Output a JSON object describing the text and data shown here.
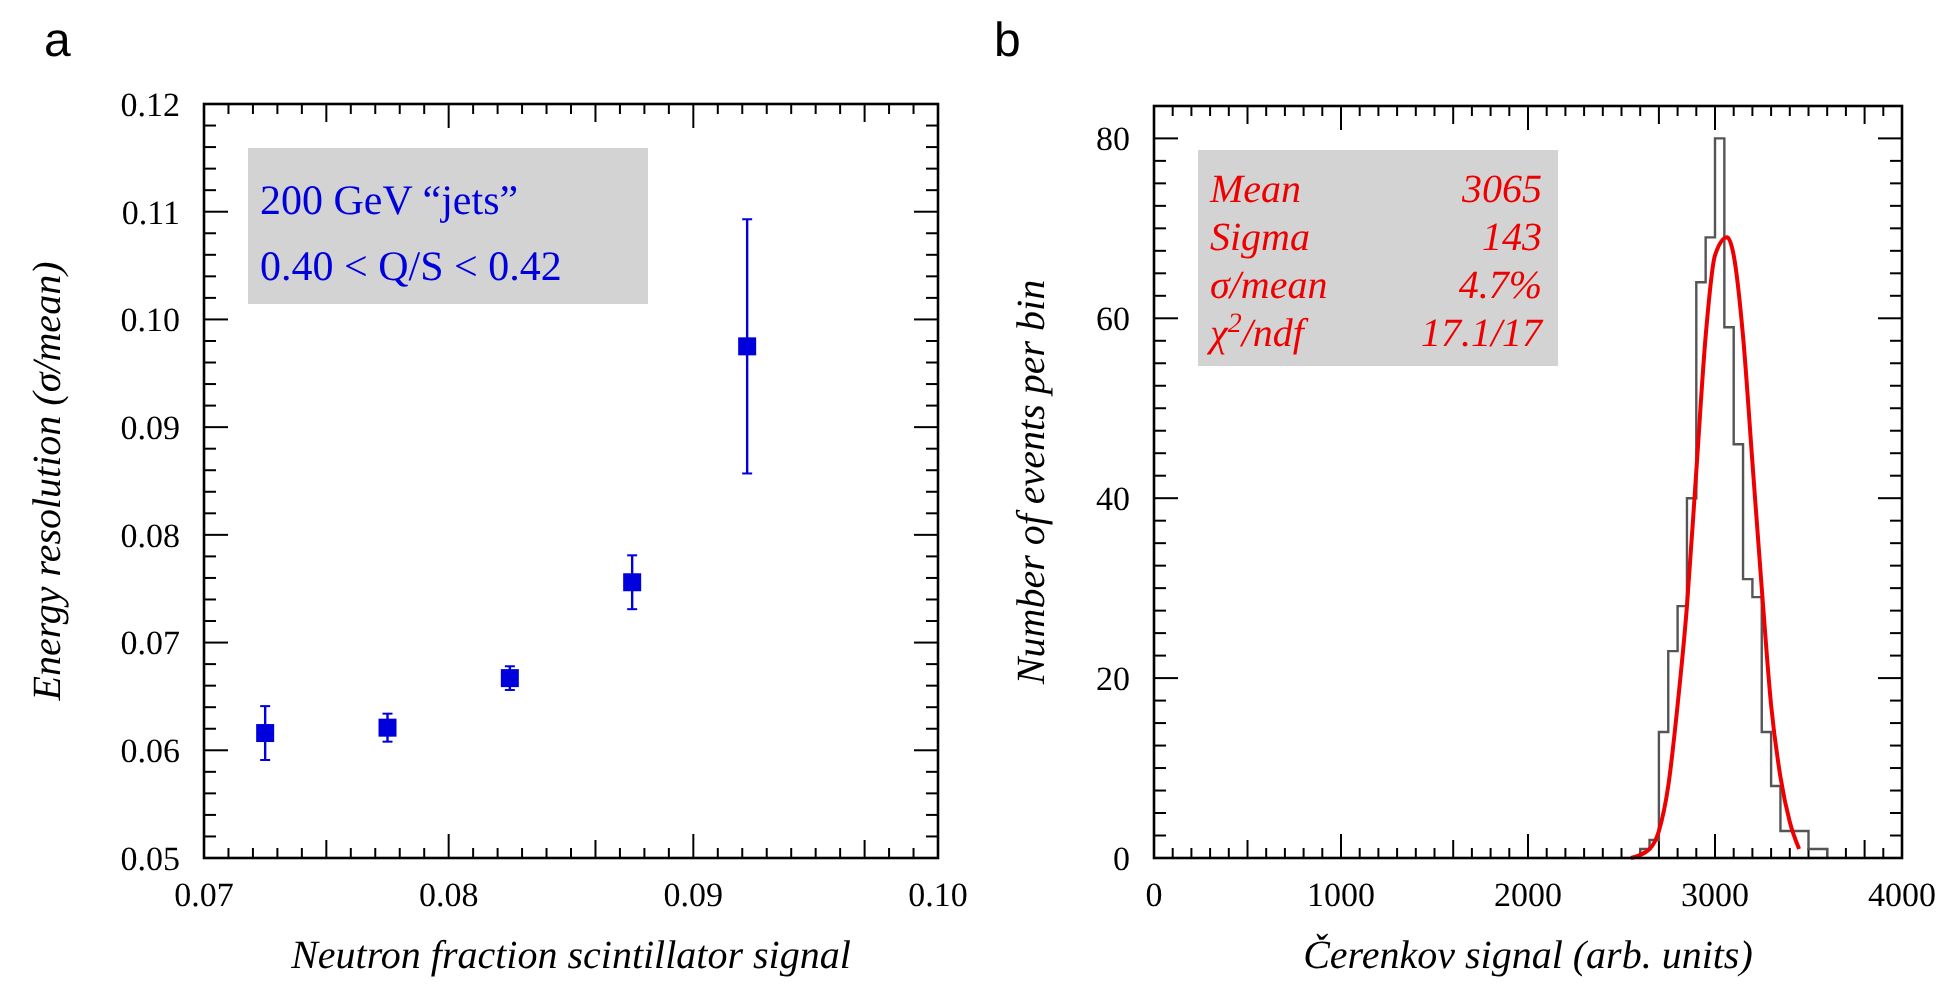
{
  "chart_data": [
    {
      "type": "scatter",
      "title": "a",
      "xlabel": "Neutron fraction scintillator signal",
      "ylabel": "Energy resolution (σ/mean)",
      "xlim": [
        0.07,
        0.1
      ],
      "xticks": [
        {
          "value": 0.07,
          "label": "0.07"
        },
        {
          "value": 0.08,
          "label": "0.08"
        },
        {
          "value": 0.09,
          "label": "0.09"
        },
        {
          "value": 0.1,
          "label": "0.10"
        }
      ],
      "ylim": [
        0.05,
        0.12
      ],
      "yticks": [
        {
          "value": 0.05,
          "label": "0.05"
        },
        {
          "value": 0.06,
          "label": "0.06"
        },
        {
          "value": 0.07,
          "label": "0.07"
        },
        {
          "value": 0.08,
          "label": "0.08"
        },
        {
          "value": 0.09,
          "label": "0.09"
        },
        {
          "value": 0.1,
          "label": "0.10"
        },
        {
          "value": 0.11,
          "label": "0.11"
        },
        {
          "value": 0.12,
          "label": "0.12"
        }
      ],
      "marker": "square",
      "grid": false,
      "annotations": [
        "200 GeV “jets”",
        "0.40 < Q/S < 0.42"
      ],
      "series": [
        {
          "color": "#0000dd",
          "x": [
            0.0725,
            0.0775,
            0.0825,
            0.0875,
            0.0922
          ],
          "values": [
            0.0616,
            0.0621,
            0.0667,
            0.0756,
            0.0975
          ],
          "errors": [
            0.0025,
            0.0013,
            0.0011,
            0.0025,
            0.0118
          ]
        }
      ]
    },
    {
      "type": "histogram",
      "title": "b",
      "xlabel": "Čerenkov signal (arb. units)",
      "ylabel": "Number of events per bin",
      "xlim": [
        0,
        4000
      ],
      "xticks": [
        0,
        1000,
        2000,
        3000,
        4000
      ],
      "ylim": [
        0,
        83.6
      ],
      "yticks": [
        0,
        20,
        40,
        60,
        80
      ],
      "grid": false,
      "annotations": [
        "Mean 3065",
        "Sigma 143",
        "σ/mean 4.7%",
        "χ$^{2}$/ndf 17.1/17"
      ],
      "series": [
        {
          "color": "#555555",
          "bins": [
            2600,
            2650,
            2700,
            2750,
            2800,
            2850,
            2900,
            2950,
            3000,
            3050,
            3100,
            3150,
            3200,
            3250,
            3300,
            3350,
            3400,
            3450,
            3500,
            3550,
            3600
          ],
          "values": [
            1,
            2,
            14,
            23,
            28,
            40,
            64,
            69,
            80,
            59,
            46,
            31,
            29,
            14,
            8,
            3,
            3,
            3,
            1,
            1
          ]
        },
        {
          "type": "line",
          "color": "#ee0000",
          "x": [
            2550,
            2650,
            2700,
            2750,
            2800,
            2850,
            2900,
            2950,
            3000,
            3065,
            3100,
            3150,
            3200,
            3250,
            3300,
            3350,
            3400,
            3450
          ],
          "values": [
            0,
            1,
            3,
            8,
            17,
            28,
            43,
            58,
            67,
            69,
            67,
            58,
            44,
            30,
            17,
            9,
            4,
            1
          ]
        }
      ]
    }
  ]
}
